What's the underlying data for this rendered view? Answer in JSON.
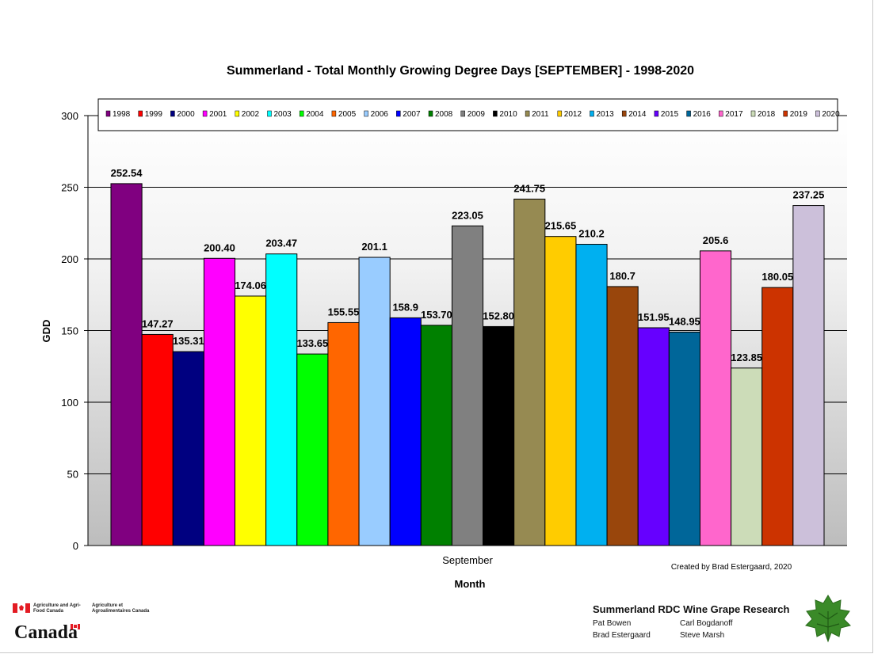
{
  "chart_data": {
    "type": "bar",
    "title": "Summerland - Total Monthly Growing Degree Days [SEPTEMBER] - 1998-2020",
    "xlabel": "Month",
    "ylabel": "GDD",
    "categories": [
      "September"
    ],
    "ylim": [
      0,
      300
    ],
    "yticks": [
      "0",
      "50",
      "100",
      "150",
      "200",
      "250",
      "300"
    ],
    "grid": true,
    "legend_position": "top",
    "series": [
      {
        "name": "1998",
        "label": "252.54",
        "value": 252.54,
        "color": "#800080"
      },
      {
        "name": "1999",
        "label": "147.27",
        "value": 147.27,
        "color": "#ff0000"
      },
      {
        "name": "2000",
        "label": "135.31",
        "value": 135.31,
        "color": "#000080"
      },
      {
        "name": "2001",
        "label": "200.40",
        "value": 200.4,
        "color": "#ff00ff"
      },
      {
        "name": "2002",
        "label": "174.06",
        "value": 174.06,
        "color": "#ffff00"
      },
      {
        "name": "2003",
        "label": "203.47",
        "value": 203.47,
        "color": "#00ffff"
      },
      {
        "name": "2004",
        "label": "133.65",
        "value": 133.65,
        "color": "#00ff00"
      },
      {
        "name": "2005",
        "label": "155.55",
        "value": 155.55,
        "color": "#ff6600"
      },
      {
        "name": "2006",
        "label": "201.1",
        "value": 201.1,
        "color": "#99ccff"
      },
      {
        "name": "2007",
        "label": "158.9",
        "value": 158.9,
        "color": "#0000ff"
      },
      {
        "name": "2008",
        "label": "153.70",
        "value": 153.7,
        "color": "#008000"
      },
      {
        "name": "2009",
        "label": "223.05",
        "value": 223.05,
        "color": "#808080"
      },
      {
        "name": "2010",
        "label": "152.80",
        "value": 152.8,
        "color": "#000000"
      },
      {
        "name": "2011",
        "label": "241.75",
        "value": 241.75,
        "color": "#968a52"
      },
      {
        "name": "2012",
        "label": "215.65",
        "value": 215.65,
        "color": "#ffcc00"
      },
      {
        "name": "2013",
        "label": "210.2",
        "value": 210.2,
        "color": "#00b0f0"
      },
      {
        "name": "2014",
        "label": "180.7",
        "value": 180.7,
        "color": "#99460c"
      },
      {
        "name": "2015",
        "label": "151.95",
        "value": 151.95,
        "color": "#6600ff"
      },
      {
        "name": "2016",
        "label": "148.95",
        "value": 148.95,
        "color": "#006699"
      },
      {
        "name": "2017",
        "label": "205.6",
        "value": 205.6,
        "color": "#ff66cc"
      },
      {
        "name": "2018",
        "label": "123.85",
        "value": 123.85,
        "color": "#ccdcb8"
      },
      {
        "name": "2019",
        "label": "180.05",
        "value": 180.05,
        "color": "#cc3300"
      },
      {
        "name": "2020",
        "label": "237.25",
        "value": 237.25,
        "color": "#ccc0da"
      }
    ],
    "annotation": "Created by Brad Estergaard, 2020"
  },
  "footer": {
    "agency_en": "Agriculture and Agri-Food Canada",
    "agency_fr": "Agriculture et Agroalimentaires Canada",
    "wordmark": "Canada",
    "research_title": "Summerland RDC Wine Grape Research",
    "people": [
      "Pat Bowen",
      "Carl Bogdanoff",
      "Brad Estergaard",
      "Steve Marsh"
    ],
    "logo_icon": "grape-leaf-icon"
  }
}
